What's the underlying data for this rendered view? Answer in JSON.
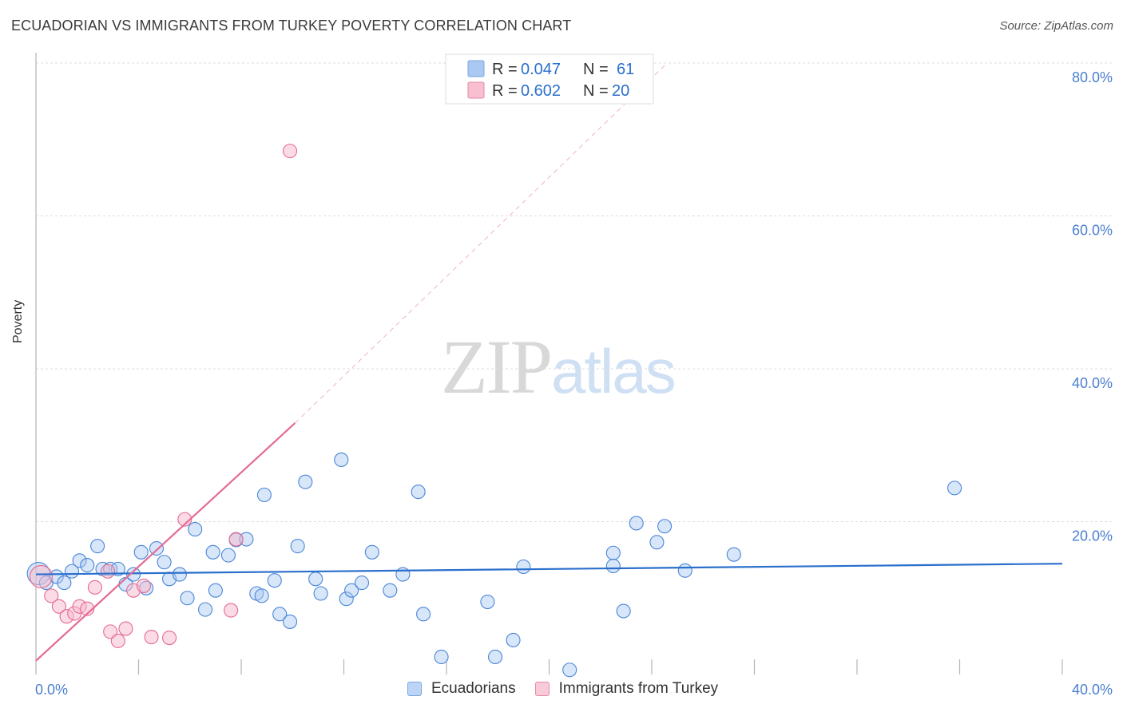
{
  "title": "ECUADORIAN VS IMMIGRANTS FROM TURKEY POVERTY CORRELATION CHART",
  "source": "Source: ZipAtlas.com",
  "watermark": {
    "left": "ZIP",
    "right": "atlas"
  },
  "legend": {
    "r_label": "R =",
    "n_label": "N =",
    "rows": [
      {
        "r": "0.047",
        "n": "61",
        "color": "#a9c8f2",
        "border": "#7aa6e0"
      },
      {
        "r": "0.602",
        "n": "20",
        "color": "#f7bfd0",
        "border": "#e98aa8"
      }
    ]
  },
  "bottom_legend": [
    {
      "label": "Ecuadorians",
      "color": "#bcd4f5",
      "border": "#7aa6e0"
    },
    {
      "label": "Immigrants from Turkey",
      "color": "#f9cad8",
      "border": "#e98aa8"
    }
  ],
  "chart_data": {
    "type": "scatter",
    "title": "ECUADORIAN VS IMMIGRANTS FROM TURKEY POVERTY CORRELATION CHART",
    "xlabel": "",
    "ylabel": "Poverty",
    "xlim": [
      0,
      40
    ],
    "ylim": [
      0,
      80
    ],
    "x_tick_labels": [
      "0.0%",
      "40.0%"
    ],
    "y_ticks": [
      20,
      40,
      60,
      80
    ],
    "y_tick_labels": [
      "20.0%",
      "40.0%",
      "60.0%",
      "80.0%"
    ],
    "colors": {
      "blue": "#4a86d8",
      "pink": "#e46a92",
      "blue_line": "#2a6fcc",
      "pink_line": "#e46a92"
    },
    "series": [
      {
        "name": "Ecuadorians",
        "color": "blue",
        "points": [
          [
            0.1,
            13.2
          ],
          [
            0.4,
            12.0
          ],
          [
            0.8,
            12.8
          ],
          [
            1.1,
            12.0
          ],
          [
            1.4,
            13.5
          ],
          [
            1.7,
            14.9
          ],
          [
            2.0,
            14.3
          ],
          [
            2.4,
            16.8
          ],
          [
            2.6,
            13.8
          ],
          [
            2.9,
            13.8
          ],
          [
            3.2,
            13.8
          ],
          [
            3.5,
            11.8
          ],
          [
            3.8,
            13.1
          ],
          [
            4.1,
            16.0
          ],
          [
            4.3,
            11.3
          ],
          [
            4.7,
            16.5
          ],
          [
            5.0,
            14.7
          ],
          [
            5.2,
            12.5
          ],
          [
            5.6,
            13.1
          ],
          [
            5.9,
            10.0
          ],
          [
            6.2,
            19.0
          ],
          [
            6.6,
            8.5
          ],
          [
            6.9,
            16.0
          ],
          [
            7.0,
            11.0
          ],
          [
            7.5,
            15.6
          ],
          [
            7.8,
            17.6
          ],
          [
            8.2,
            17.7
          ],
          [
            8.6,
            10.6
          ],
          [
            8.8,
            10.3
          ],
          [
            8.9,
            23.5
          ],
          [
            9.3,
            12.3
          ],
          [
            9.5,
            7.9
          ],
          [
            9.9,
            6.9
          ],
          [
            10.2,
            16.8
          ],
          [
            10.5,
            25.2
          ],
          [
            10.9,
            12.5
          ],
          [
            11.1,
            10.6
          ],
          [
            11.9,
            28.1
          ],
          [
            12.1,
            9.9
          ],
          [
            12.3,
            11.0
          ],
          [
            12.7,
            12.0
          ],
          [
            13.1,
            16.0
          ],
          [
            13.8,
            11.0
          ],
          [
            14.3,
            13.1
          ],
          [
            14.9,
            23.9
          ],
          [
            15.1,
            7.9
          ],
          [
            15.8,
            2.3
          ],
          [
            17.6,
            9.5
          ],
          [
            17.9,
            2.3
          ],
          [
            18.6,
            4.5
          ],
          [
            19.0,
            14.1
          ],
          [
            20.8,
            0.6
          ],
          [
            22.5,
            15.9
          ],
          [
            22.5,
            14.2
          ],
          [
            22.9,
            8.3
          ],
          [
            23.4,
            19.8
          ],
          [
            24.2,
            17.3
          ],
          [
            24.5,
            19.4
          ],
          [
            25.3,
            13.6
          ],
          [
            27.2,
            15.7
          ],
          [
            35.8,
            24.4
          ]
        ]
      },
      {
        "name": "Immigrants from Turkey",
        "color": "pink",
        "points": [
          [
            0.2,
            12.8
          ],
          [
            0.6,
            10.3
          ],
          [
            0.9,
            8.9
          ],
          [
            1.2,
            7.6
          ],
          [
            1.5,
            8.0
          ],
          [
            1.7,
            8.9
          ],
          [
            2.0,
            8.6
          ],
          [
            2.3,
            11.4
          ],
          [
            2.8,
            13.5
          ],
          [
            2.9,
            5.6
          ],
          [
            3.2,
            4.4
          ],
          [
            3.5,
            6.0
          ],
          [
            3.8,
            11.0
          ],
          [
            4.2,
            11.6
          ],
          [
            4.5,
            4.9
          ],
          [
            5.2,
            4.8
          ],
          [
            5.8,
            20.3
          ],
          [
            7.6,
            8.4
          ],
          [
            7.8,
            17.7
          ],
          [
            9.9,
            68.5
          ]
        ]
      }
    ],
    "trend_lines": [
      {
        "series": "Ecuadorians",
        "x": [
          0,
          40
        ],
        "y": [
          13.1,
          14.5
        ],
        "style": "solid"
      },
      {
        "series": "Immigrants from Turkey",
        "x": [
          0,
          10.1
        ],
        "y": [
          1.8,
          32.9
        ],
        "style": "solid"
      },
      {
        "series": "Immigrants from Turkey",
        "x": [
          10.1,
          24.6
        ],
        "y": [
          32.9,
          80
        ],
        "style": "dashed"
      }
    ]
  }
}
